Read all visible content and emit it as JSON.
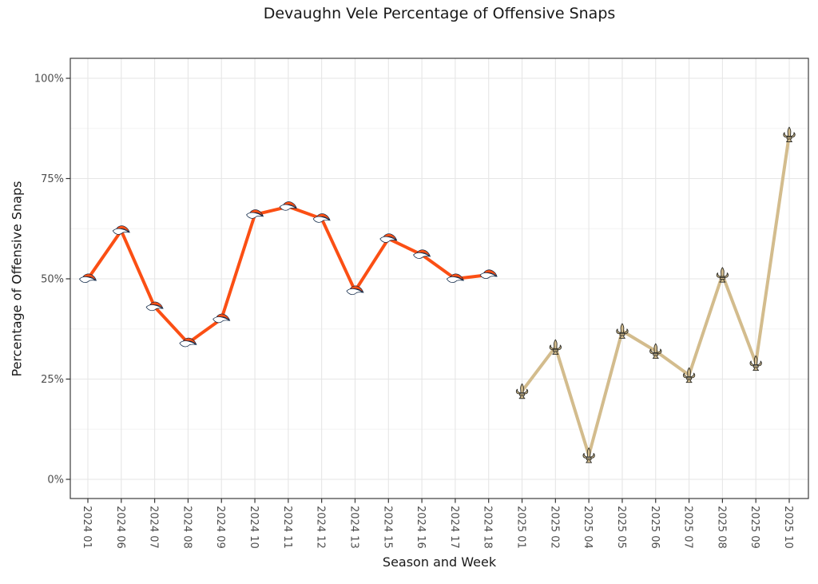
{
  "chart_data": {
    "type": "line",
    "title": "Devaughn Vele Percentage of Offensive Snaps",
    "xlabel": "Season and Week",
    "ylabel": "Percentage of Offensive Snaps",
    "x_categories": [
      "2024 01",
      "2024 06",
      "2024 07",
      "2024 08",
      "2024 09",
      "2024 10",
      "2024 11",
      "2024 12",
      "2024 13",
      "2024 15",
      "2024 16",
      "2024 17",
      "2024 18",
      "2025 01",
      "2025 02",
      "2025 04",
      "2025 05",
      "2025 06",
      "2025 07",
      "2025 08",
      "2025 09",
      "2025 10"
    ],
    "y_axis": {
      "ticks": [
        0,
        25,
        50,
        75,
        100
      ],
      "tick_labels": [
        "0%",
        "25%",
        "50%",
        "75%",
        "100%"
      ],
      "minor_gridlines": [
        12.5,
        37.5,
        62.5,
        87.5
      ],
      "lim": [
        0,
        100
      ]
    },
    "legend": "none",
    "grid": true,
    "series": [
      {
        "name": "broncos-2024",
        "marker": "denver-broncos-horse-logo-icon",
        "color": "#FB4F14",
        "marker_fill": "#FFFFFF",
        "marker_mane": "#FB4F14",
        "marker_outline": "#0A2343",
        "points": [
          {
            "x": "2024 01",
            "y": 50
          },
          {
            "x": "2024 06",
            "y": 62
          },
          {
            "x": "2024 07",
            "y": 43
          },
          {
            "x": "2024 08",
            "y": 34
          },
          {
            "x": "2024 09",
            "y": 40
          },
          {
            "x": "2024 10",
            "y": 66
          },
          {
            "x": "2024 11",
            "y": 68
          },
          {
            "x": "2024 12",
            "y": 65
          },
          {
            "x": "2024 13",
            "y": 47
          },
          {
            "x": "2024 15",
            "y": 60
          },
          {
            "x": "2024 16",
            "y": 56
          },
          {
            "x": "2024 17",
            "y": 50
          },
          {
            "x": "2024 18",
            "y": 51
          }
        ]
      },
      {
        "name": "saints-2025",
        "marker": "new-orleans-saints-fleur-de-lis-icon",
        "color": "#D3BC8D",
        "marker_fill": "#D3BC8D",
        "marker_outline": "#33322B",
        "points": [
          {
            "x": "2025 01",
            "y": 22
          },
          {
            "x": "2025 02",
            "y": 33
          },
          {
            "x": "2025 04",
            "y": 6
          },
          {
            "x": "2025 05",
            "y": 37
          },
          {
            "x": "2025 06",
            "y": 32
          },
          {
            "x": "2025 07",
            "y": 26
          },
          {
            "x": "2025 08",
            "y": 51
          },
          {
            "x": "2025 09",
            "y": 29
          },
          {
            "x": "2025 10",
            "y": 86
          }
        ]
      }
    ]
  }
}
